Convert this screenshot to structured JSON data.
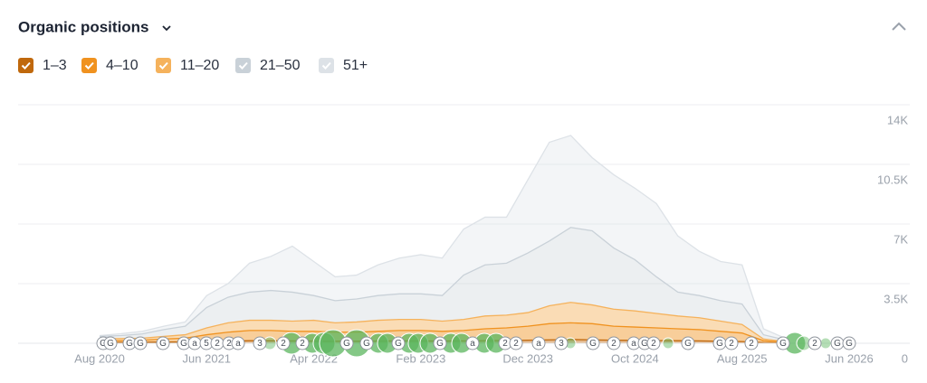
{
  "chart_data": {
    "type": "stacked-area",
    "title": "Organic positions",
    "categories": [
      "Aug 2020",
      null,
      null,
      null,
      null,
      "Jun 2021",
      null,
      null,
      null,
      null,
      "Apr 2022",
      null,
      null,
      null,
      null,
      "Feb 2023",
      null,
      null,
      null,
      null,
      "Dec 2023",
      null,
      null,
      null,
      null,
      "Oct 2024",
      null,
      null,
      null,
      null,
      "Aug 2025",
      null,
      null,
      null,
      null,
      "Jun 2026"
    ],
    "series": [
      {
        "name": "1–3",
        "color": "#c0680c",
        "values": [
          50,
          50,
          60,
          70,
          80,
          100,
          120,
          150,
          150,
          140,
          130,
          120,
          120,
          130,
          140,
          140,
          130,
          140,
          150,
          160,
          180,
          200,
          220,
          200,
          180,
          170,
          160,
          150,
          140,
          120,
          100,
          40,
          20,
          null,
          null,
          null
        ]
      },
      {
        "name": "4–10",
        "color": "#f0921f",
        "values": [
          100,
          110,
          120,
          180,
          220,
          400,
          530,
          600,
          600,
          560,
          570,
          530,
          530,
          570,
          610,
          610,
          570,
          610,
          700,
          740,
          820,
          950,
          980,
          950,
          820,
          780,
          740,
          700,
          660,
          580,
          500,
          110,
          40,
          null,
          null,
          null
        ]
      },
      {
        "name": "11–20",
        "color": "#f5b25c",
        "values": [
          100,
          120,
          120,
          150,
          200,
          400,
          550,
          600,
          600,
          600,
          650,
          550,
          600,
          650,
          650,
          650,
          600,
          650,
          750,
          750,
          800,
          1050,
          1200,
          1100,
          1000,
          950,
          850,
          750,
          700,
          600,
          500,
          100,
          40,
          null,
          null,
          null
        ]
      },
      {
        "name": "21–50",
        "color": "#c9d1d8",
        "values": [
          150,
          170,
          250,
          400,
          500,
          1200,
          1500,
          1650,
          1750,
          1700,
          1450,
          1300,
          1350,
          1450,
          1500,
          1500,
          1500,
          2600,
          3000,
          3050,
          3500,
          3800,
          4400,
          4350,
          3600,
          3000,
          2150,
          1400,
          1300,
          1200,
          1200,
          250,
          100,
          null,
          null,
          null
        ]
      },
      {
        "name": "51+",
        "color": "#dde2e7",
        "values": [
          50,
          110,
          150,
          200,
          250,
          700,
          800,
          1700,
          2000,
          2700,
          2000,
          1400,
          1400,
          1800,
          2100,
          2300,
          2200,
          2700,
          2800,
          2700,
          4300,
          5800,
          5400,
          4300,
          4300,
          4200,
          4300,
          3300,
          2600,
          2300,
          2300,
          350,
          100,
          null,
          null,
          null
        ]
      }
    ],
    "ylim": [
      0,
      14000
    ],
    "yticks": [
      0,
      {
        "value": 3500,
        "label": "3.5K"
      },
      {
        "value": 7000,
        "label": "7K"
      },
      {
        "value": 10500,
        "label": "10.5K"
      },
      {
        "value": 14000,
        "label": "14K"
      }
    ],
    "grid": true,
    "events": [
      "G",
      "G",
      "G",
      "G",
      "G",
      "G",
      "a",
      "5",
      "2",
      "2",
      "a",
      "3",
      "2",
      "2",
      "G",
      "G",
      "G",
      "G",
      "a",
      "2",
      "2",
      "a",
      "3",
      "G",
      "2",
      "a",
      "G",
      "2",
      "G",
      "G",
      "2",
      "2",
      "G",
      "2",
      "G",
      "G"
    ]
  }
}
